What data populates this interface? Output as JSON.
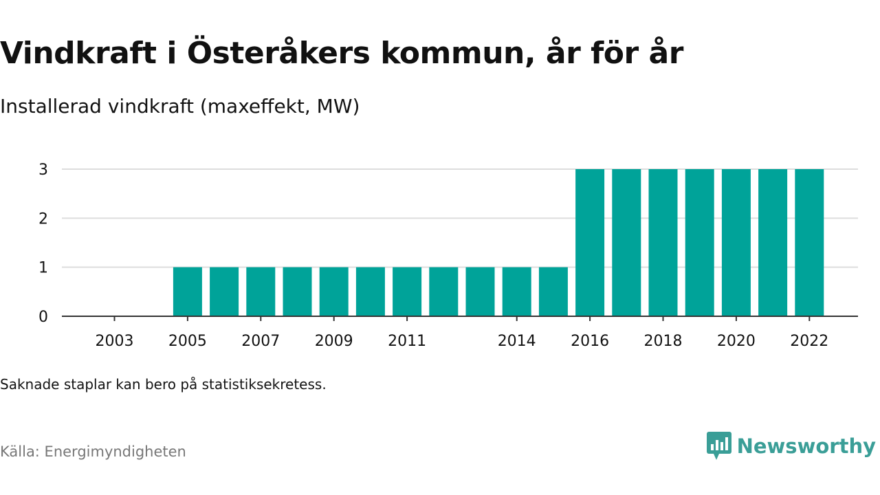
{
  "title": "Vindkraft i Österåkers kommun, år för år",
  "subtitle": "Installerad vindkraft (maxeffekt, MW)",
  "footnote": "Saknade staplar kan bero på statistiksekretess.",
  "source": "Källa: Energimyndigheten",
  "brand": {
    "name": "Newsworthy",
    "icon": "newsworthy-logo-icon",
    "color": "#3a9e97"
  },
  "colors": {
    "bar": "#00a399",
    "grid": "#dddddd",
    "axis": "#333333",
    "text": "#111111",
    "muted": "#777777"
  },
  "chart_data": {
    "type": "bar",
    "categories": [
      "2003",
      "2004",
      "2005",
      "2006",
      "2007",
      "2008",
      "2009",
      "2010",
      "2011",
      "2012",
      "2013",
      "2014",
      "2015",
      "2016",
      "2017",
      "2018",
      "2019",
      "2020",
      "2021",
      "2022"
    ],
    "values": [
      0,
      0,
      1,
      1,
      1,
      1,
      1,
      1,
      1,
      1,
      1,
      1,
      1,
      3,
      3,
      3,
      3,
      3,
      3,
      3
    ],
    "x_tick_labels": [
      "2003",
      "2005",
      "2007",
      "2009",
      "2011",
      "2014",
      "2016",
      "2018",
      "2020",
      "2022"
    ],
    "y_ticks": [
      0,
      1,
      2,
      3
    ],
    "ylim": [
      0,
      3
    ],
    "xlabel": "",
    "ylabel": "",
    "grid": true,
    "legend": "none"
  }
}
